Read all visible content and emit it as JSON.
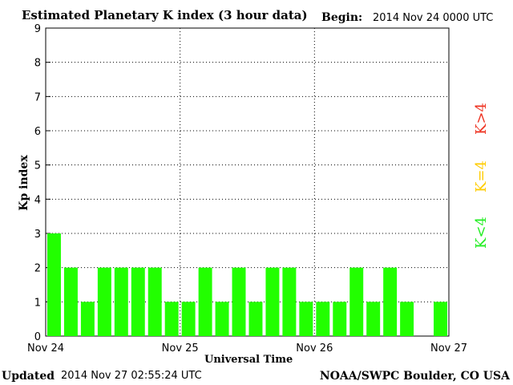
{
  "header": {
    "title": "Estimated Planetary K index (3 hour data)",
    "begin_label": "Begin:",
    "begin_value": "2014 Nov 24 0000 UTC"
  },
  "footer": {
    "updated_label": "Updated",
    "updated_value": "2014 Nov 27 02:55:24 UTC",
    "credit": "NOAA/SWPC Boulder, CO USA"
  },
  "legend": {
    "items": [
      {
        "label": "K<4",
        "color": "#22ee22"
      },
      {
        "label": "K=4",
        "color": "#ffcc00"
      },
      {
        "label": "K>4",
        "color": "#ee3322"
      }
    ]
  },
  "chart_data": {
    "type": "bar",
    "xlabel": "Universal Time",
    "ylabel": "Kp index",
    "ylim": [
      0,
      9
    ],
    "yticks": [
      0,
      1,
      2,
      3,
      4,
      5,
      6,
      7,
      8,
      9
    ],
    "xticks": [
      "Nov 24",
      "Nov 25",
      "Nov 26",
      "Nov 27"
    ],
    "interval_hours": 3,
    "bar_color": "#22ff00",
    "grid": "dotted",
    "values": [
      3,
      2,
      1,
      2,
      2,
      2,
      2,
      1,
      1,
      2,
      1,
      2,
      1,
      2,
      2,
      1,
      1,
      1,
      2,
      1,
      2,
      1,
      null,
      1
    ]
  }
}
